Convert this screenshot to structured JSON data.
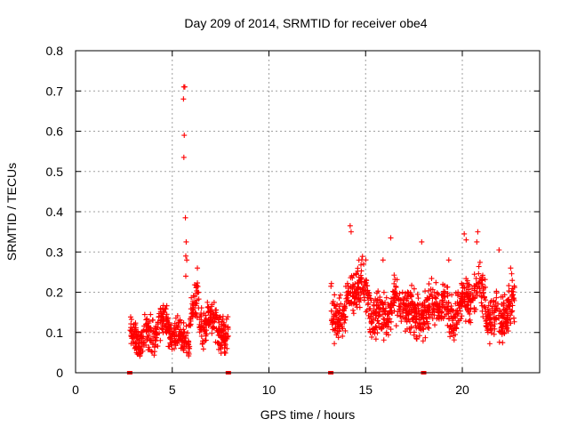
{
  "chart_data": {
    "type": "scatter",
    "title": "Day 209 of 2014, SRMTID for receiver obe4",
    "xlabel": "GPS time / hours",
    "ylabel": "SRMTID / TECUs",
    "xlim": [
      0,
      24
    ],
    "ylim": [
      0,
      0.8
    ],
    "xticks": [
      0,
      5,
      10,
      15,
      20
    ],
    "yticks": [
      0,
      0.1,
      0.2,
      0.3,
      0.4,
      0.5,
      0.6,
      0.7,
      0.8
    ],
    "xtick_labels": [
      "0",
      "5",
      "10",
      "15",
      "20"
    ],
    "ytick_labels": [
      "0",
      "0.1",
      "0.2",
      "0.3",
      "0.4",
      "0.5",
      "0.6",
      "0.7",
      "0.8"
    ],
    "grid": true,
    "marker": "plus",
    "color": "#ff0000",
    "series": [
      {
        "name": "obe4",
        "segments": [
          {
            "x_start": 2.8,
            "x_end": 7.9,
            "base": 0.1,
            "spread": 0.035
          },
          {
            "x_start": 13.2,
            "x_end": 22.7,
            "base": 0.155,
            "spread": 0.045
          }
        ],
        "spikes": [
          {
            "x": 5.6,
            "y": 0.71
          },
          {
            "x": 5.65,
            "y": 0.71
          },
          {
            "x": 5.58,
            "y": 0.68
          },
          {
            "x": 5.62,
            "y": 0.59
          },
          {
            "x": 5.6,
            "y": 0.535
          },
          {
            "x": 5.68,
            "y": 0.385
          },
          {
            "x": 5.72,
            "y": 0.325
          },
          {
            "x": 5.7,
            "y": 0.29
          },
          {
            "x": 5.75,
            "y": 0.28
          },
          {
            "x": 5.7,
            "y": 0.24
          },
          {
            "x": 14.2,
            "y": 0.365
          },
          {
            "x": 14.25,
            "y": 0.35
          },
          {
            "x": 16.3,
            "y": 0.335
          },
          {
            "x": 17.9,
            "y": 0.325
          },
          {
            "x": 20.1,
            "y": 0.345
          },
          {
            "x": 20.8,
            "y": 0.35
          },
          {
            "x": 20.2,
            "y": 0.33
          },
          {
            "x": 20.75,
            "y": 0.325
          },
          {
            "x": 21.9,
            "y": 0.305
          },
          {
            "x": 22.5,
            "y": 0.26
          },
          {
            "x": 19.3,
            "y": 0.28
          },
          {
            "x": 14.9,
            "y": 0.27
          },
          {
            "x": 15.9,
            "y": 0.28
          },
          {
            "x": 6.3,
            "y": 0.26
          }
        ],
        "zero_points": [
          {
            "x": 2.8,
            "y": 0
          },
          {
            "x": 7.9,
            "y": 0
          },
          {
            "x": 13.2,
            "y": 0
          },
          {
            "x": 18.0,
            "y": 0
          }
        ]
      }
    ]
  }
}
